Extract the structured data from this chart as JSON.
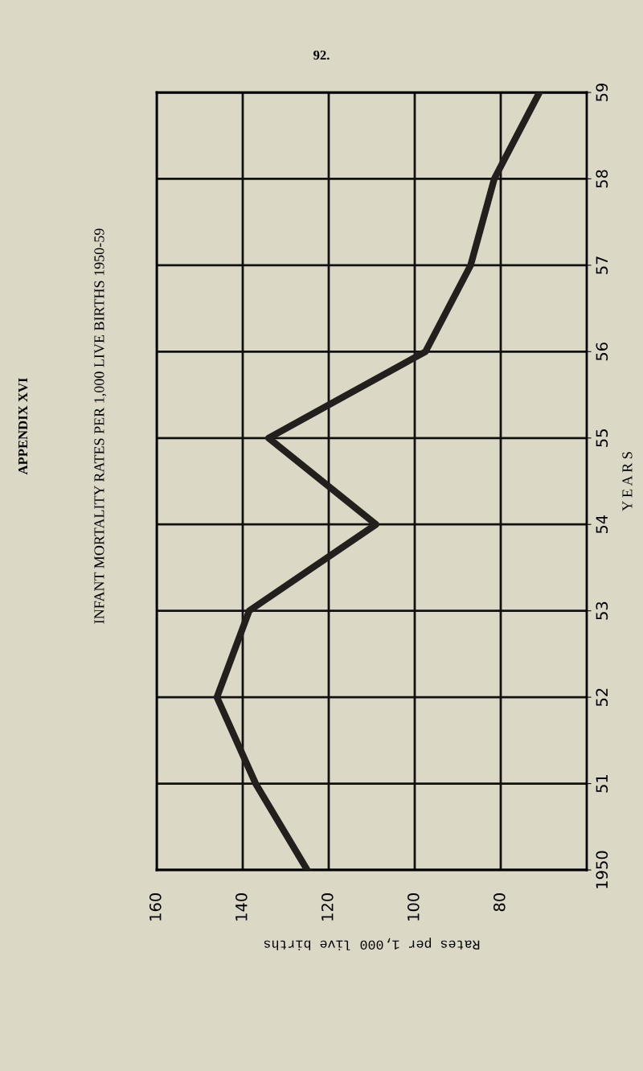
{
  "chart_data": {
    "type": "line",
    "title": "INFANT MORTALITY RATES PER 1,000 LIVE BIRTHS 1950-59",
    "xlabel": "Rates per 1,000 live births",
    "ylabel": "Y E A R S",
    "annotations": [
      "APPENDIX XVI",
      "92."
    ],
    "x": [
      125,
      137,
      146,
      138.5,
      109,
      134,
      97.5,
      87,
      81.5,
      71
    ],
    "series": [
      {
        "color": "#231f1c",
        "values": [
          1950,
          1951,
          1952,
          1953,
          1954,
          1955,
          1956,
          1957,
          1958,
          1959
        ]
      }
    ],
    "xlim": [
      160,
      60
    ],
    "xticks": [
      160,
      140,
      120,
      100,
      80
    ],
    "ylim": [
      1950,
      1959
    ],
    "yticks": [
      {
        "value": 1950,
        "label": "1950"
      },
      {
        "value": 1951,
        "label": "51"
      },
      {
        "value": 1952,
        "label": "52"
      },
      {
        "value": 1953,
        "label": "53"
      },
      {
        "value": 1954,
        "label": "54"
      },
      {
        "value": 1955,
        "label": "55"
      },
      {
        "value": 1956,
        "label": "56"
      },
      {
        "value": 1957,
        "label": "57"
      },
      {
        "value": 1958,
        "label": "58"
      },
      {
        "value": 1959,
        "label": "59"
      }
    ],
    "grid": true,
    "marker": "none",
    "line_style": "solid"
  }
}
